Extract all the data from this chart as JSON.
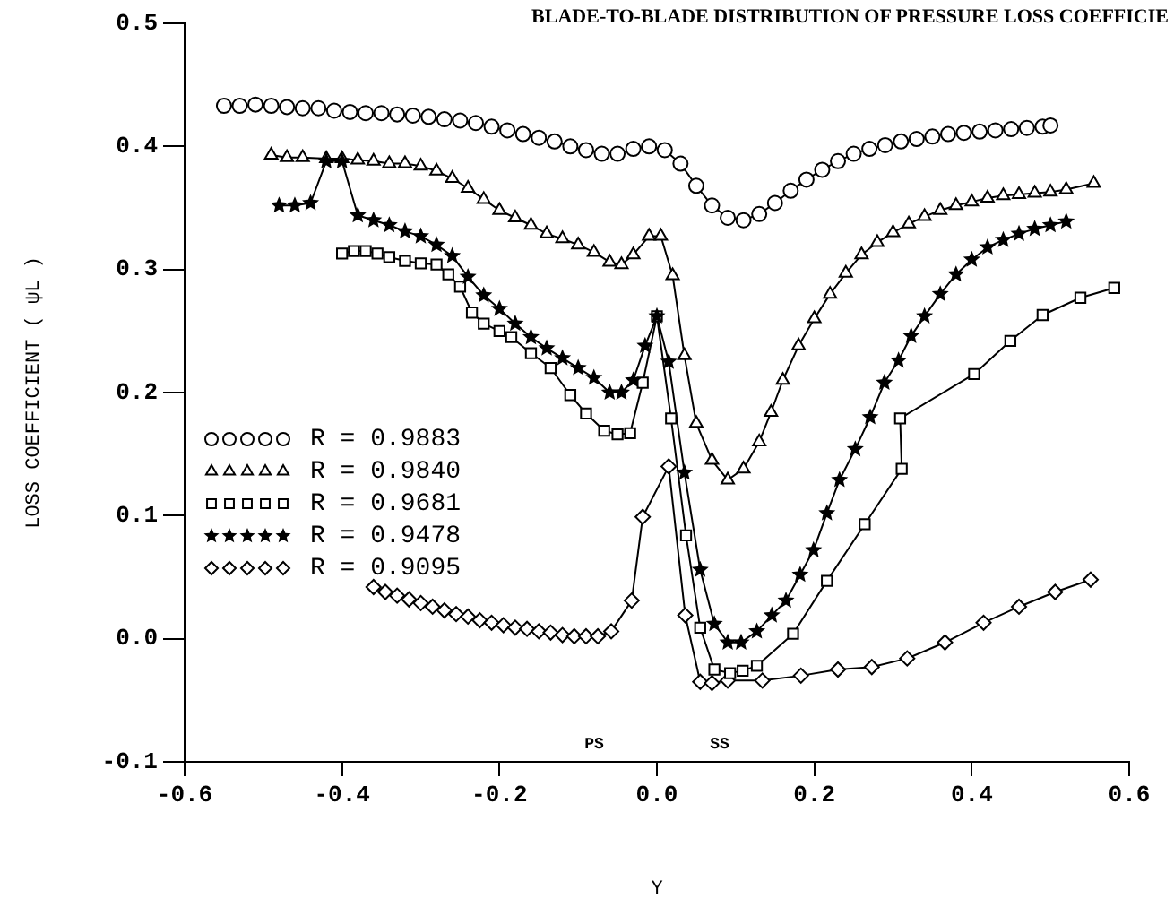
{
  "chart_data": {
    "type": "line",
    "title": "BLADE-TO-BLADE DISTRIBUTION OF PRESSURE LOSS COEFFICIE",
    "xlabel": "Y",
    "ylabel": "LOSS COEFFICIENT ( ψL )",
    "xlim": [
      -0.6,
      0.6
    ],
    "xticks": [
      {
        "value": -0.6,
        "label": "-0.6"
      },
      {
        "value": -0.4,
        "label": "-0.4"
      },
      {
        "value": -0.2,
        "label": "-0.2"
      },
      {
        "value": 0,
        "label": "0.0"
      },
      {
        "value": 0.2,
        "label": "0.2"
      },
      {
        "value": 0.4,
        "label": "0.4"
      },
      {
        "value": 0.6,
        "label": "0.6"
      }
    ],
    "ylim": [
      -0.1,
      0.5
    ],
    "yticks": [
      {
        "value": -0.1,
        "label": "-0.1"
      },
      {
        "value": 0,
        "label": "0.0"
      },
      {
        "value": 0.1,
        "label": "0.1"
      },
      {
        "value": 0.2,
        "label": "0.2"
      },
      {
        "value": 0.3,
        "label": "0.3"
      },
      {
        "value": 0.4,
        "label": "0.4"
      },
      {
        "value": 0.5,
        "label": "0.5"
      }
    ],
    "grid": false,
    "legend": "left",
    "line_style": "solid",
    "annotations": [
      "PS",
      "SS"
    ],
    "series": [
      {
        "name": "R = 0.9883",
        "color": "#000000",
        "marker": "circle",
        "x": [
          -0.55,
          -0.53,
          -0.51,
          -0.49,
          -0.47,
          -0.45,
          -0.43,
          -0.41,
          -0.39,
          -0.37,
          -0.35,
          -0.33,
          -0.31,
          -0.29,
          -0.27,
          -0.25,
          -0.23,
          -0.21,
          -0.19,
          -0.17,
          -0.15,
          -0.13,
          -0.11,
          -0.09,
          -0.07,
          -0.05,
          -0.03,
          -0.01,
          0.01,
          0.03,
          0.05,
          0.07,
          0.09,
          0.11,
          0.13,
          0.15,
          0.17,
          0.19,
          0.21,
          0.23,
          0.25,
          0.27,
          0.29,
          0.31,
          0.33,
          0.35,
          0.37,
          0.39,
          0.41,
          0.43,
          0.45,
          0.47,
          0.49,
          0.5
        ],
        "values": [
          0.433,
          0.433,
          0.434,
          0.433,
          0.432,
          0.431,
          0.431,
          0.429,
          0.428,
          0.427,
          0.427,
          0.426,
          0.425,
          0.424,
          0.422,
          0.421,
          0.419,
          0.416,
          0.413,
          0.41,
          0.407,
          0.404,
          0.4,
          0.397,
          0.394,
          0.394,
          0.398,
          0.4,
          0.397,
          0.386,
          0.368,
          0.352,
          0.342,
          0.34,
          0.345,
          0.354,
          0.364,
          0.373,
          0.381,
          0.388,
          0.394,
          0.398,
          0.401,
          0.404,
          0.406,
          0.408,
          0.41,
          0.411,
          0.412,
          0.413,
          0.414,
          0.415,
          0.416,
          0.417
        ]
      },
      {
        "name": "R = 0.9840",
        "color": "#000000",
        "marker": "triangle",
        "x": [
          -0.49,
          -0.47,
          -0.45,
          -0.42,
          -0.4,
          -0.38,
          -0.36,
          -0.34,
          -0.32,
          -0.3,
          -0.28,
          -0.26,
          -0.24,
          -0.22,
          -0.2,
          -0.18,
          -0.16,
          -0.14,
          -0.12,
          -0.1,
          -0.08,
          -0.06,
          -0.045,
          -0.03,
          -0.01,
          0.005,
          0.02,
          0.035,
          0.05,
          0.07,
          0.09,
          0.11,
          0.13,
          0.145,
          0.16,
          0.18,
          0.2,
          0.22,
          0.24,
          0.26,
          0.28,
          0.3,
          0.32,
          0.34,
          0.36,
          0.38,
          0.4,
          0.42,
          0.44,
          0.46,
          0.48,
          0.5,
          0.52,
          0.555
        ],
        "values": [
          0.393,
          0.391,
          0.391,
          0.39,
          0.39,
          0.389,
          0.388,
          0.386,
          0.386,
          0.384,
          0.38,
          0.374,
          0.366,
          0.357,
          0.348,
          0.342,
          0.336,
          0.329,
          0.325,
          0.32,
          0.314,
          0.306,
          0.304,
          0.312,
          0.327,
          0.327,
          0.295,
          0.23,
          0.175,
          0.145,
          0.129,
          0.138,
          0.16,
          0.184,
          0.21,
          0.238,
          0.26,
          0.28,
          0.297,
          0.312,
          0.322,
          0.33,
          0.337,
          0.343,
          0.348,
          0.352,
          0.355,
          0.358,
          0.36,
          0.361,
          0.362,
          0.363,
          0.365,
          0.37
        ]
      },
      {
        "name": "R = 0.9681",
        "color": "#000000",
        "marker": "square",
        "x": [
          -0.4,
          -0.385,
          -0.37,
          -0.355,
          -0.34,
          -0.32,
          -0.3,
          -0.28,
          -0.265,
          -0.25,
          -0.235,
          -0.22,
          -0.2,
          -0.185,
          -0.16,
          -0.135,
          -0.11,
          -0.09,
          -0.067,
          -0.05,
          -0.034,
          -0.018,
          0,
          0.018,
          0.037,
          0.055,
          0.073,
          0.093,
          0.109,
          0.127,
          0.173,
          0.216,
          0.264,
          0.311,
          0.309,
          0.403,
          0.449,
          0.49,
          0.538,
          0.581
        ],
        "values": [
          0.313,
          0.315,
          0.315,
          0.313,
          0.31,
          0.307,
          0.305,
          0.304,
          0.296,
          0.286,
          0.265,
          0.256,
          0.25,
          0.245,
          0.232,
          0.22,
          0.198,
          0.183,
          0.169,
          0.166,
          0.167,
          0.208,
          0.262,
          0.179,
          0.084,
          0.009,
          -0.025,
          -0.028,
          -0.026,
          -0.022,
          0.004,
          0.047,
          0.093,
          0.138,
          0.179,
          0.215,
          0.242,
          0.263,
          0.277,
          0.285
        ]
      },
      {
        "name": "R = 0.9478",
        "color": "#000000",
        "marker": "star",
        "x": [
          -0.48,
          -0.46,
          -0.44,
          -0.42,
          -0.4,
          -0.38,
          -0.36,
          -0.34,
          -0.32,
          -0.3,
          -0.28,
          -0.26,
          -0.24,
          -0.22,
          -0.2,
          -0.18,
          -0.16,
          -0.14,
          -0.12,
          -0.1,
          -0.08,
          -0.06,
          -0.045,
          -0.03,
          -0.015,
          0,
          0.015,
          0.035,
          0.055,
          0.073,
          0.09,
          0.107,
          0.127,
          0.146,
          0.164,
          0.182,
          0.199,
          0.216,
          0.232,
          0.252,
          0.271,
          0.289,
          0.307,
          0.323,
          0.34,
          0.36,
          0.38,
          0.4,
          0.42,
          0.44,
          0.46,
          0.48,
          0.5,
          0.52
        ],
        "values": [
          0.352,
          0.352,
          0.354,
          0.388,
          0.388,
          0.344,
          0.34,
          0.336,
          0.331,
          0.327,
          0.32,
          0.311,
          0.294,
          0.279,
          0.268,
          0.256,
          0.245,
          0.236,
          0.228,
          0.22,
          0.212,
          0.2,
          0.2,
          0.21,
          0.238,
          0.262,
          0.225,
          0.135,
          0.056,
          0.012,
          -0.003,
          -0.003,
          0.006,
          0.019,
          0.031,
          0.052,
          0.072,
          0.102,
          0.129,
          0.154,
          0.18,
          0.208,
          0.226,
          0.246,
          0.262,
          0.28,
          0.296,
          0.308,
          0.318,
          0.324,
          0.329,
          0.333,
          0.336,
          0.339
        ]
      },
      {
        "name": "R = 0.9095",
        "color": "#000000",
        "marker": "diamond",
        "x": [
          -0.36,
          -0.345,
          -0.33,
          -0.315,
          -0.3,
          -0.285,
          -0.27,
          -0.255,
          -0.24,
          -0.225,
          -0.21,
          -0.195,
          -0.18,
          -0.165,
          -0.15,
          -0.135,
          -0.12,
          -0.105,
          -0.09,
          -0.075,
          -0.058,
          -0.032,
          -0.018,
          0.015,
          0.036,
          0.055,
          0.07,
          0.09,
          0.134,
          0.183,
          0.23,
          0.273,
          0.318,
          0.366,
          0.415,
          0.46,
          0.506,
          0.551
        ],
        "values": [
          0.042,
          0.038,
          0.035,
          0.032,
          0.029,
          0.026,
          0.023,
          0.02,
          0.018,
          0.015,
          0.013,
          0.011,
          0.009,
          0.008,
          0.006,
          0.005,
          0.003,
          0.002,
          0.002,
          0.002,
          0.006,
          0.031,
          0.099,
          0.14,
          0.019,
          -0.035,
          -0.036,
          -0.034,
          -0.034,
          -0.03,
          -0.025,
          -0.023,
          -0.016,
          -0.003,
          0.013,
          0.026,
          0.038,
          0.048
        ]
      }
    ]
  }
}
